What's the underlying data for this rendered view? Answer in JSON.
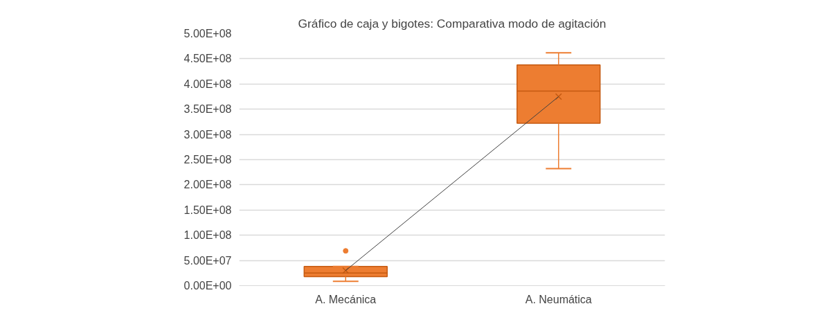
{
  "chart_data": {
    "type": "box",
    "title": "Gráfico de caja y bigotes: Comparativa modo de agitación",
    "categories": [
      "A. Mecánica",
      "A. Neumática"
    ],
    "series": [
      {
        "color": "#ed7d31",
        "boxes": [
          {
            "low": 8500000,
            "q1": 18000000,
            "median": 25000000,
            "q3": 38000000,
            "high": 38000000,
            "mean": 30000000,
            "outliers": [
              69000000
            ]
          },
          {
            "low": 232000000,
            "q1": 322000000,
            "median": 386000000,
            "q3": 438000000,
            "high": 462000000,
            "mean": 375000000
          }
        ]
      },
      {
        "type": "line",
        "color": "#404040",
        "values": [
          30000000,
          375000000
        ]
      }
    ],
    "ylim": [
      0,
      500000000
    ],
    "yticks": [
      {
        "value": 0,
        "label": "0.00E+00"
      },
      {
        "value": 50000000,
        "label": "5.00E+07"
      },
      {
        "value": 100000000,
        "label": "1.00E+08"
      },
      {
        "value": 150000000,
        "label": "1.50E+08"
      },
      {
        "value": 200000000,
        "label": "2.00E+08"
      },
      {
        "value": 250000000,
        "label": "2.50E+08"
      },
      {
        "value": 300000000,
        "label": "3.00E+08"
      },
      {
        "value": 350000000,
        "label": "3.50E+08"
      },
      {
        "value": 400000000,
        "label": "4.00E+08"
      },
      {
        "value": 450000000,
        "label": "4.50E+08"
      },
      {
        "value": 500000000,
        "label": "5.00E+08"
      }
    ],
    "grid": "y"
  }
}
